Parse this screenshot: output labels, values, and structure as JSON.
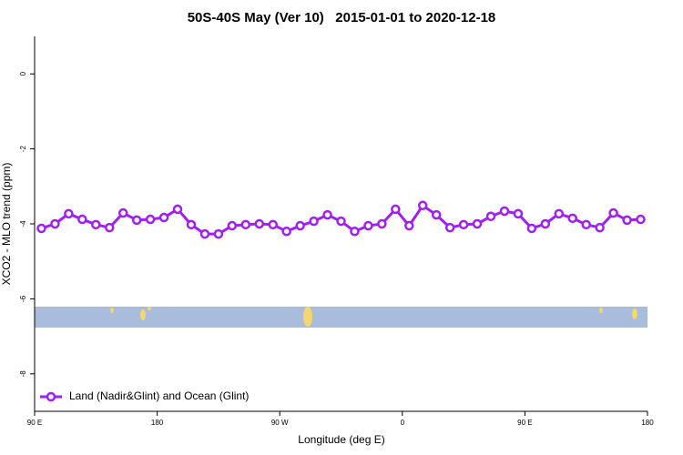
{
  "chart_data": {
    "type": "line",
    "title": "50S-40S May (Ver 10)   2015-01-01 to 2020-12-18",
    "x_label": "Longitude (deg E)",
    "y_label": "XCO2 - MLO trend (ppm)",
    "x": [
      95,
      105,
      115,
      125,
      135,
      145,
      155,
      165,
      175,
      185,
      195,
      205,
      215,
      225,
      235,
      245,
      255,
      265,
      275,
      285,
      295,
      305,
      315,
      325,
      335,
      345,
      355,
      365,
      375,
      385,
      395,
      405,
      415,
      425,
      435,
      445,
      455,
      465,
      475,
      485,
      495,
      505,
      515,
      525,
      535
    ],
    "series": [
      {
        "name": "Land (Nadir&Glint) and Ocean (Glint)",
        "color": "#a020f0",
        "values": [
          -4.12,
          -4.0,
          -3.73,
          -3.88,
          -4.02,
          -4.1,
          -3.71,
          -3.9,
          -3.88,
          -3.83,
          -3.61,
          -4.02,
          -4.27,
          -4.27,
          -4.05,
          -4.02,
          -4.0,
          -4.02,
          -4.2,
          -4.05,
          -3.93,
          -3.76,
          -3.93,
          -4.2,
          -4.05,
          -4.0,
          -3.61,
          -4.05,
          -3.51,
          -3.76,
          -4.1,
          -4.02,
          -4.0,
          -3.8,
          -3.66,
          -3.73,
          -4.12,
          -4.0,
          -3.73,
          -3.85,
          -4.02,
          -4.1,
          -3.71,
          -3.9,
          -3.88
        ]
      }
    ],
    "xlim": [
      90,
      540
    ],
    "xticks": [
      {
        "value": 90,
        "label": "90 E"
      },
      {
        "value": 180,
        "label": "180"
      },
      {
        "value": 270,
        "label": "90 W"
      },
      {
        "value": 360,
        "label": "0"
      },
      {
        "value": 450,
        "label": "90 E"
      },
      {
        "value": 540,
        "label": "180"
      }
    ],
    "ylim": [
      -9,
      1
    ],
    "yticks": [
      0,
      -2,
      -4,
      -6,
      -8
    ],
    "legend_position": "bottom-left"
  }
}
